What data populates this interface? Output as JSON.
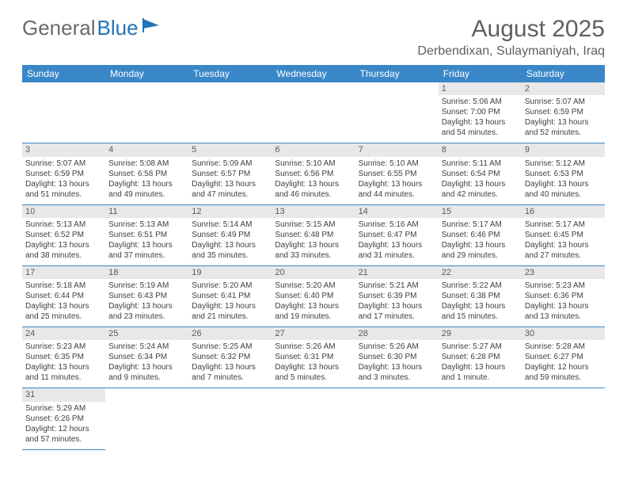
{
  "logo": {
    "word1": "General",
    "word2": "Blue"
  },
  "title": "August 2025",
  "location": "Derbendixan, Sulaymaniyah, Iraq",
  "colors": {
    "header_bg": "#3a87c8",
    "header_text": "#ffffff",
    "daynum_bg": "#e8e8e8",
    "cell_border": "#3a87c8",
    "text": "#404040",
    "title_text": "#606060"
  },
  "weekdays": [
    "Sunday",
    "Monday",
    "Tuesday",
    "Wednesday",
    "Thursday",
    "Friday",
    "Saturday"
  ],
  "weeks": [
    [
      null,
      null,
      null,
      null,
      null,
      {
        "n": "1",
        "sr": "Sunrise: 5:06 AM",
        "ss": "Sunset: 7:00 PM",
        "dl": "Daylight: 13 hours and 54 minutes."
      },
      {
        "n": "2",
        "sr": "Sunrise: 5:07 AM",
        "ss": "Sunset: 6:59 PM",
        "dl": "Daylight: 13 hours and 52 minutes."
      }
    ],
    [
      {
        "n": "3",
        "sr": "Sunrise: 5:07 AM",
        "ss": "Sunset: 6:59 PM",
        "dl": "Daylight: 13 hours and 51 minutes."
      },
      {
        "n": "4",
        "sr": "Sunrise: 5:08 AM",
        "ss": "Sunset: 6:58 PM",
        "dl": "Daylight: 13 hours and 49 minutes."
      },
      {
        "n": "5",
        "sr": "Sunrise: 5:09 AM",
        "ss": "Sunset: 6:57 PM",
        "dl": "Daylight: 13 hours and 47 minutes."
      },
      {
        "n": "6",
        "sr": "Sunrise: 5:10 AM",
        "ss": "Sunset: 6:56 PM",
        "dl": "Daylight: 13 hours and 46 minutes."
      },
      {
        "n": "7",
        "sr": "Sunrise: 5:10 AM",
        "ss": "Sunset: 6:55 PM",
        "dl": "Daylight: 13 hours and 44 minutes."
      },
      {
        "n": "8",
        "sr": "Sunrise: 5:11 AM",
        "ss": "Sunset: 6:54 PM",
        "dl": "Daylight: 13 hours and 42 minutes."
      },
      {
        "n": "9",
        "sr": "Sunrise: 5:12 AM",
        "ss": "Sunset: 6:53 PM",
        "dl": "Daylight: 13 hours and 40 minutes."
      }
    ],
    [
      {
        "n": "10",
        "sr": "Sunrise: 5:13 AM",
        "ss": "Sunset: 6:52 PM",
        "dl": "Daylight: 13 hours and 38 minutes."
      },
      {
        "n": "11",
        "sr": "Sunrise: 5:13 AM",
        "ss": "Sunset: 6:51 PM",
        "dl": "Daylight: 13 hours and 37 minutes."
      },
      {
        "n": "12",
        "sr": "Sunrise: 5:14 AM",
        "ss": "Sunset: 6:49 PM",
        "dl": "Daylight: 13 hours and 35 minutes."
      },
      {
        "n": "13",
        "sr": "Sunrise: 5:15 AM",
        "ss": "Sunset: 6:48 PM",
        "dl": "Daylight: 13 hours and 33 minutes."
      },
      {
        "n": "14",
        "sr": "Sunrise: 5:16 AM",
        "ss": "Sunset: 6:47 PM",
        "dl": "Daylight: 13 hours and 31 minutes."
      },
      {
        "n": "15",
        "sr": "Sunrise: 5:17 AM",
        "ss": "Sunset: 6:46 PM",
        "dl": "Daylight: 13 hours and 29 minutes."
      },
      {
        "n": "16",
        "sr": "Sunrise: 5:17 AM",
        "ss": "Sunset: 6:45 PM",
        "dl": "Daylight: 13 hours and 27 minutes."
      }
    ],
    [
      {
        "n": "17",
        "sr": "Sunrise: 5:18 AM",
        "ss": "Sunset: 6:44 PM",
        "dl": "Daylight: 13 hours and 25 minutes."
      },
      {
        "n": "18",
        "sr": "Sunrise: 5:19 AM",
        "ss": "Sunset: 6:43 PM",
        "dl": "Daylight: 13 hours and 23 minutes."
      },
      {
        "n": "19",
        "sr": "Sunrise: 5:20 AM",
        "ss": "Sunset: 6:41 PM",
        "dl": "Daylight: 13 hours and 21 minutes."
      },
      {
        "n": "20",
        "sr": "Sunrise: 5:20 AM",
        "ss": "Sunset: 6:40 PM",
        "dl": "Daylight: 13 hours and 19 minutes."
      },
      {
        "n": "21",
        "sr": "Sunrise: 5:21 AM",
        "ss": "Sunset: 6:39 PM",
        "dl": "Daylight: 13 hours and 17 minutes."
      },
      {
        "n": "22",
        "sr": "Sunrise: 5:22 AM",
        "ss": "Sunset: 6:38 PM",
        "dl": "Daylight: 13 hours and 15 minutes."
      },
      {
        "n": "23",
        "sr": "Sunrise: 5:23 AM",
        "ss": "Sunset: 6:36 PM",
        "dl": "Daylight: 13 hours and 13 minutes."
      }
    ],
    [
      {
        "n": "24",
        "sr": "Sunrise: 5:23 AM",
        "ss": "Sunset: 6:35 PM",
        "dl": "Daylight: 13 hours and 11 minutes."
      },
      {
        "n": "25",
        "sr": "Sunrise: 5:24 AM",
        "ss": "Sunset: 6:34 PM",
        "dl": "Daylight: 13 hours and 9 minutes."
      },
      {
        "n": "26",
        "sr": "Sunrise: 5:25 AM",
        "ss": "Sunset: 6:32 PM",
        "dl": "Daylight: 13 hours and 7 minutes."
      },
      {
        "n": "27",
        "sr": "Sunrise: 5:26 AM",
        "ss": "Sunset: 6:31 PM",
        "dl": "Daylight: 13 hours and 5 minutes."
      },
      {
        "n": "28",
        "sr": "Sunrise: 5:26 AM",
        "ss": "Sunset: 6:30 PM",
        "dl": "Daylight: 13 hours and 3 minutes."
      },
      {
        "n": "29",
        "sr": "Sunrise: 5:27 AM",
        "ss": "Sunset: 6:28 PM",
        "dl": "Daylight: 13 hours and 1 minute."
      },
      {
        "n": "30",
        "sr": "Sunrise: 5:28 AM",
        "ss": "Sunset: 6:27 PM",
        "dl": "Daylight: 12 hours and 59 minutes."
      }
    ],
    [
      {
        "n": "31",
        "sr": "Sunrise: 5:29 AM",
        "ss": "Sunset: 6:26 PM",
        "dl": "Daylight: 12 hours and 57 minutes."
      },
      null,
      null,
      null,
      null,
      null,
      null
    ]
  ]
}
